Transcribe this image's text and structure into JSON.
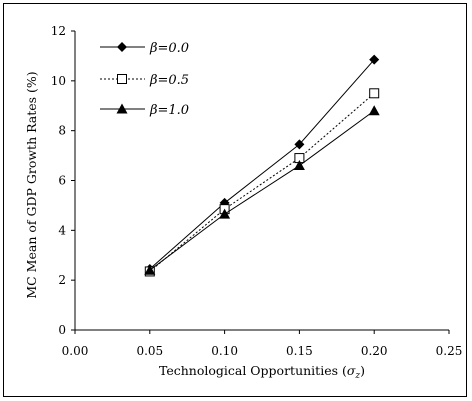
{
  "chart_data": {
    "type": "line",
    "title": "",
    "xlabel": "Technological Opportunities (σz)",
    "ylabel": "MC Mean of GDP Growth Rates (%)",
    "xlim": [
      0,
      0.25
    ],
    "ylim": [
      0,
      12
    ],
    "x_ticks": [
      "0.00",
      "0.05",
      "0.10",
      "0.15",
      "0.20",
      "0.25"
    ],
    "y_ticks": [
      "0",
      "2",
      "4",
      "6",
      "8",
      "10",
      "12"
    ],
    "grid": false,
    "legend_position": "top-left",
    "x": [
      0.05,
      0.1,
      0.15,
      0.2
    ],
    "series": [
      {
        "name": "β=0.0",
        "marker": "diamond",
        "line": "solid",
        "values": [
          2.45,
          5.1,
          7.45,
          10.85
        ]
      },
      {
        "name": "β=0.5",
        "marker": "open-square",
        "line": "dotted",
        "values": [
          2.35,
          4.85,
          6.9,
          9.5
        ]
      },
      {
        "name": "β=1.0",
        "marker": "triangle",
        "line": "solid",
        "values": [
          2.4,
          4.65,
          6.6,
          8.8
        ]
      }
    ]
  }
}
